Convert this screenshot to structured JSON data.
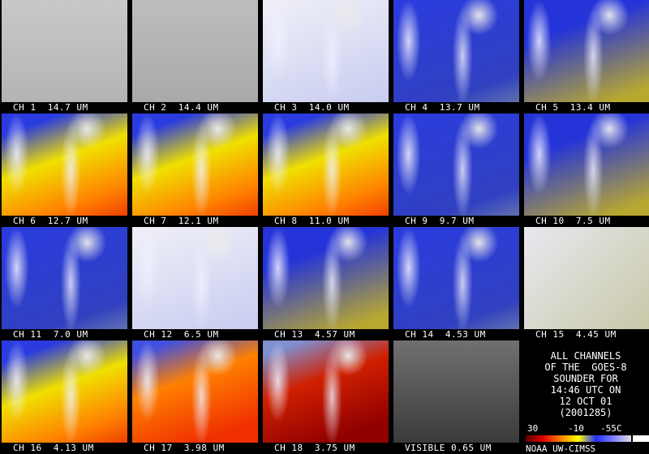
{
  "panels": [
    {
      "label": "CH 1  14.7 UM"
    },
    {
      "label": "CH 2  14.4 UM"
    },
    {
      "label": "CH 3  14.0 UM"
    },
    {
      "label": "CH 4  13.7 UM"
    },
    {
      "label": "CH 5  13.4 UM"
    },
    {
      "label": "CH 6  12.7 UM"
    },
    {
      "label": "CH 7  12.1 UM"
    },
    {
      "label": "CH 8  11.0 UM"
    },
    {
      "label": "CH 9  9.7 UM"
    },
    {
      "label": "CH 10  7.5 UM"
    },
    {
      "label": "CH 11  7.0 UM"
    },
    {
      "label": "CH 12  6.5 UM"
    },
    {
      "label": "CH 13  4.57 UM"
    },
    {
      "label": "CH 14  4.53 UM"
    },
    {
      "label": "CH 15  4.45 UM"
    },
    {
      "label": "CH 16  4.13 UM"
    },
    {
      "label": "CH 17  3.98 UM"
    },
    {
      "label": "CH 18  3.75 UM"
    },
    {
      "label": "VISIBLE 0.65 UM"
    }
  ],
  "info": {
    "lines": [
      "ALL CHANNELS",
      "OF THE  GOES-8",
      "SOUNDER FOR",
      "14:46 UTC ON",
      "12 OCT 01",
      "(2001285)"
    ],
    "colorbar_labels": [
      "30",
      "-10",
      "-55C"
    ],
    "credit": "NOAA UW-CIMSS"
  }
}
